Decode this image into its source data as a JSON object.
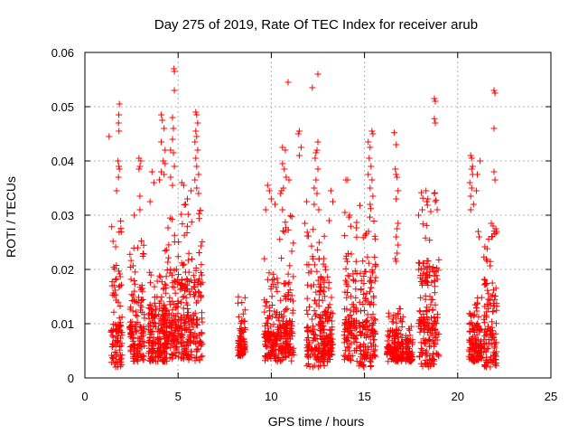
{
  "chart_data": {
    "type": "scatter",
    "title": "Day 275 of 2019, Rate Of TEC Index for receiver arub",
    "xlabel": "GPS time / hours",
    "ylabel": "ROTI / TECUs",
    "xlim": [
      0,
      25
    ],
    "ylim": [
      0,
      0.06
    ],
    "xticks": [
      "0",
      "5",
      "10",
      "15",
      "20",
      "25"
    ],
    "yticks": [
      "0",
      "0.01",
      "0.02",
      "0.03",
      "0.04",
      "0.05",
      "0.06"
    ],
    "grid": true,
    "marker": "+",
    "color": "#ff0000",
    "clusters": [
      {
        "x": [
          1.4,
          2.0
        ],
        "y": [
          0.002,
          0.031
        ]
      },
      {
        "x": [
          2.4,
          3.2
        ],
        "y": [
          0.003,
          0.027
        ]
      },
      {
        "x": [
          3.4,
          4.4
        ],
        "y": [
          0.003,
          0.02
        ]
      },
      {
        "x": [
          4.2,
          5.0
        ],
        "y": [
          0.003,
          0.03
        ]
      },
      {
        "x": [
          5.0,
          6.3
        ],
        "y": [
          0.003,
          0.032
        ]
      },
      {
        "x": [
          8.2,
          8.6
        ],
        "y": [
          0.004,
          0.015
        ]
      },
      {
        "x": [
          9.6,
          10.4
        ],
        "y": [
          0.003,
          0.022
        ]
      },
      {
        "x": [
          10.4,
          11.2
        ],
        "y": [
          0.003,
          0.03
        ]
      },
      {
        "x": [
          11.9,
          12.9
        ],
        "y": [
          0.002,
          0.03
        ]
      },
      {
        "x": [
          12.8,
          13.3
        ],
        "y": [
          0.003,
          0.02
        ]
      },
      {
        "x": [
          13.9,
          14.6
        ],
        "y": [
          0.003,
          0.03
        ]
      },
      {
        "x": [
          14.7,
          15.6
        ],
        "y": [
          0.002,
          0.033
        ]
      },
      {
        "x": [
          16.2,
          17.1
        ],
        "y": [
          0.003,
          0.013
        ]
      },
      {
        "x": [
          17.2,
          17.6
        ],
        "y": [
          0.003,
          0.01
        ]
      },
      {
        "x": [
          17.9,
          19.0
        ],
        "y": [
          0.002,
          0.035
        ]
      },
      {
        "x": [
          20.6,
          21.3
        ],
        "y": [
          0.003,
          0.015
        ]
      },
      {
        "x": [
          21.4,
          22.1
        ],
        "y": [
          0.002,
          0.028
        ]
      }
    ],
    "outliers": [
      [
        1.3,
        0.0445
      ],
      [
        1.85,
        0.0505
      ],
      [
        1.82,
        0.0485
      ],
      [
        1.8,
        0.047
      ],
      [
        1.83,
        0.0455
      ],
      [
        1.78,
        0.04
      ],
      [
        1.82,
        0.039
      ],
      [
        1.85,
        0.0385
      ],
      [
        1.8,
        0.037
      ],
      [
        1.7,
        0.0345
      ],
      [
        2.9,
        0.0405
      ],
      [
        3.0,
        0.04
      ],
      [
        2.95,
        0.039
      ],
      [
        2.9,
        0.0385
      ],
      [
        2.95,
        0.0335
      ],
      [
        2.65,
        0.03
      ],
      [
        2.95,
        0.031
      ],
      [
        4.1,
        0.0485
      ],
      [
        4.15,
        0.0475
      ],
      [
        4.25,
        0.046
      ],
      [
        4.1,
        0.0435
      ],
      [
        4.3,
        0.042
      ],
      [
        4.2,
        0.04
      ],
      [
        4.1,
        0.038
      ],
      [
        4.25,
        0.0375
      ],
      [
        4.0,
        0.0365
      ],
      [
        4.3,
        0.0395
      ],
      [
        3.6,
        0.038
      ],
      [
        3.7,
        0.036
      ],
      [
        3.5,
        0.0325
      ],
      [
        4.78,
        0.057
      ],
      [
        4.8,
        0.0565
      ],
      [
        4.8,
        0.053
      ],
      [
        4.7,
        0.048
      ],
      [
        4.75,
        0.046
      ],
      [
        4.7,
        0.044
      ],
      [
        4.6,
        0.042
      ],
      [
        4.75,
        0.0415
      ],
      [
        4.8,
        0.039
      ],
      [
        4.6,
        0.037
      ],
      [
        4.7,
        0.0355
      ],
      [
        5.2,
        0.036
      ],
      [
        5.3,
        0.0355
      ],
      [
        5.5,
        0.033
      ],
      [
        5.4,
        0.032
      ],
      [
        5.95,
        0.049
      ],
      [
        6.0,
        0.0485
      ],
      [
        6.05,
        0.047
      ],
      [
        5.95,
        0.0455
      ],
      [
        6.0,
        0.0445
      ],
      [
        5.9,
        0.0435
      ],
      [
        6.05,
        0.042
      ],
      [
        5.95,
        0.0405
      ],
      [
        6.0,
        0.039
      ],
      [
        6.1,
        0.0375
      ],
      [
        5.9,
        0.0365
      ],
      [
        6.0,
        0.035
      ],
      [
        6.1,
        0.034
      ],
      [
        5.7,
        0.0345
      ],
      [
        9.8,
        0.0355
      ],
      [
        9.9,
        0.0345
      ],
      [
        10.0,
        0.033
      ],
      [
        9.7,
        0.031
      ],
      [
        10.2,
        0.032
      ],
      [
        10.6,
        0.0425
      ],
      [
        10.75,
        0.042
      ],
      [
        10.6,
        0.0395
      ],
      [
        10.7,
        0.0385
      ],
      [
        10.8,
        0.037
      ],
      [
        10.65,
        0.035
      ],
      [
        10.5,
        0.034
      ],
      [
        10.55,
        0.0345
      ],
      [
        10.95,
        0.0365
      ],
      [
        10.6,
        0.031
      ],
      [
        10.9,
        0.0545
      ],
      [
        12.2,
        0.0535
      ],
      [
        12.5,
        0.056
      ],
      [
        11.5,
        0.0455
      ],
      [
        11.45,
        0.045
      ],
      [
        11.6,
        0.0425
      ],
      [
        11.5,
        0.041
      ],
      [
        12.5,
        0.0435
      ],
      [
        12.45,
        0.042
      ],
      [
        12.4,
        0.0415
      ],
      [
        12.35,
        0.0405
      ],
      [
        12.5,
        0.0385
      ],
      [
        12.4,
        0.0365
      ],
      [
        12.3,
        0.035
      ],
      [
        12.45,
        0.034
      ],
      [
        12.3,
        0.032
      ],
      [
        12.55,
        0.031
      ],
      [
        11.9,
        0.0325
      ],
      [
        11.8,
        0.0285
      ],
      [
        13.2,
        0.0345
      ],
      [
        13.3,
        0.0325
      ],
      [
        13.1,
        0.029
      ],
      [
        14.0,
        0.0365
      ],
      [
        14.1,
        0.0365
      ],
      [
        13.95,
        0.0305
      ],
      [
        14.2,
        0.03
      ],
      [
        15.4,
        0.0455
      ],
      [
        15.45,
        0.045
      ],
      [
        15.2,
        0.0435
      ],
      [
        15.3,
        0.0425
      ],
      [
        15.25,
        0.0405
      ],
      [
        15.35,
        0.039
      ],
      [
        15.2,
        0.0375
      ],
      [
        15.4,
        0.0365
      ],
      [
        15.3,
        0.035
      ],
      [
        15.45,
        0.0335
      ],
      [
        15.3,
        0.032
      ],
      [
        16.6,
        0.0452
      ],
      [
        16.7,
        0.043
      ],
      [
        16.65,
        0.0385
      ],
      [
        16.7,
        0.0375
      ],
      [
        16.75,
        0.037
      ],
      [
        16.8,
        0.0345
      ],
      [
        16.7,
        0.033
      ],
      [
        16.8,
        0.0285
      ],
      [
        16.75,
        0.0275
      ],
      [
        16.7,
        0.026
      ],
      [
        16.8,
        0.0245
      ],
      [
        16.75,
        0.023
      ],
      [
        16.65,
        0.022
      ],
      [
        16.7,
        0.0215
      ],
      [
        18.75,
        0.0515
      ],
      [
        18.8,
        0.051
      ],
      [
        18.75,
        0.0478
      ],
      [
        18.8,
        0.047
      ],
      [
        18.3,
        0.0345
      ],
      [
        18.4,
        0.033
      ],
      [
        18.35,
        0.0325
      ],
      [
        18.75,
        0.034
      ],
      [
        18.8,
        0.0325
      ],
      [
        18.9,
        0.031
      ],
      [
        17.9,
        0.03
      ],
      [
        18.1,
        0.031
      ],
      [
        20.7,
        0.041
      ],
      [
        20.75,
        0.0405
      ],
      [
        20.8,
        0.039
      ],
      [
        20.75,
        0.0385
      ],
      [
        20.8,
        0.0375
      ],
      [
        20.65,
        0.036
      ],
      [
        20.75,
        0.035
      ],
      [
        20.7,
        0.0335
      ],
      [
        20.85,
        0.032
      ],
      [
        20.7,
        0.031
      ],
      [
        21.2,
        0.04
      ],
      [
        21.05,
        0.0375
      ],
      [
        21.0,
        0.0345
      ],
      [
        21.1,
        0.027
      ],
      [
        21.15,
        0.026
      ],
      [
        21.95,
        0.053
      ],
      [
        22.0,
        0.0525
      ],
      [
        21.95,
        0.046
      ],
      [
        21.95,
        0.038
      ],
      [
        22.0,
        0.0365
      ],
      [
        21.8,
        0.0285
      ],
      [
        21.9,
        0.028
      ],
      [
        22.05,
        0.0275
      ],
      [
        22.1,
        0.027
      ],
      [
        21.85,
        0.026
      ]
    ]
  }
}
